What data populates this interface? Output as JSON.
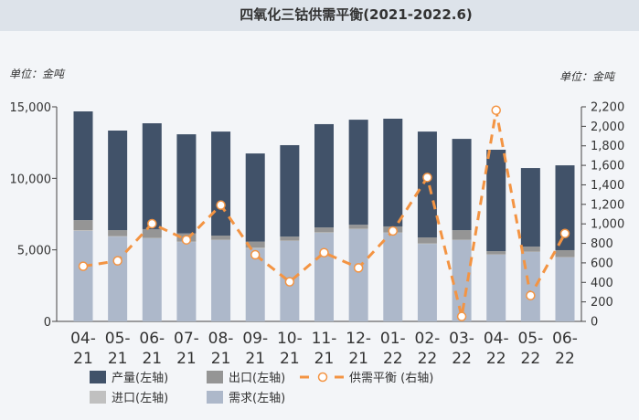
{
  "title": "四氧化三钴供需平衡(2021-2022.6)",
  "left_unit": "单位：金吨",
  "right_unit": "单位：金吨",
  "chart_data": {
    "type": "bar",
    "stacked": true,
    "categories": [
      "04-21",
      "05-21",
      "06-21",
      "07-21",
      "08-21",
      "09-21",
      "10-21",
      "11-21",
      "12-21",
      "01-22",
      "02-22",
      "03-22",
      "04-22",
      "05-22",
      "06-22"
    ],
    "x_tick_lines": [
      [
        "04-",
        "21"
      ],
      [
        "05-",
        "21"
      ],
      [
        "06-",
        "21"
      ],
      [
        "07-",
        "21"
      ],
      [
        "08-",
        "21"
      ],
      [
        "09-",
        "21"
      ],
      [
        "10-",
        "21"
      ],
      [
        "11-",
        "21"
      ],
      [
        "12-",
        "21"
      ],
      [
        "01-",
        "22"
      ],
      [
        "02-",
        "22"
      ],
      [
        "03-",
        "22"
      ],
      [
        "04-",
        "22"
      ],
      [
        "05-",
        "22"
      ],
      [
        "06-",
        "22"
      ]
    ],
    "series": [
      {
        "name": "需求(左轴)",
        "axis": "left",
        "color": "#adb8ca",
        "values": [
          6320,
          5930,
          5810,
          5550,
          5680,
          5100,
          5620,
          6190,
          6450,
          6190,
          5420,
          5680,
          4660,
          4850,
          4470
        ]
      },
      {
        "name": "进口(左轴)",
        "axis": "left",
        "color": "#c0c0c0",
        "values": [
          60,
          30,
          30,
          30,
          30,
          50,
          30,
          40,
          30,
          30,
          30,
          30,
          30,
          30,
          30
        ]
      },
      {
        "name": "出口(左轴)",
        "axis": "left",
        "color": "#959595",
        "values": [
          700,
          420,
          610,
          570,
          290,
          430,
          280,
          340,
          280,
          420,
          420,
          670,
          220,
          350,
          480
        ]
      },
      {
        "name": "产量(左轴)",
        "axis": "left",
        "color": "#415269",
        "values": [
          7600,
          6960,
          7400,
          6930,
          7270,
          6160,
          6390,
          7220,
          7340,
          7530,
          7400,
          6380,
          7090,
          5490,
          5930
        ]
      },
      {
        "name": "供需平衡 (右轴)",
        "axis": "right",
        "type": "line",
        "color": "#f39443",
        "values": [
          565,
          621,
          1002,
          836,
          1192,
          683,
          406,
          705,
          549,
          927,
          1476,
          50,
          2165,
          265,
          901
        ]
      }
    ],
    "left_ylim": [
      0,
      15000
    ],
    "left_ticks": [
      "0",
      "5,000",
      "10,000",
      "15,000"
    ],
    "right_ylim": [
      0,
      2200
    ],
    "right_ticks": [
      "0",
      "200",
      "400",
      "600",
      "800",
      "1,000",
      "1,200",
      "1,400",
      "1,600",
      "1,800",
      "2,000",
      "2,200"
    ],
    "legend": "bottom",
    "grid": false
  }
}
